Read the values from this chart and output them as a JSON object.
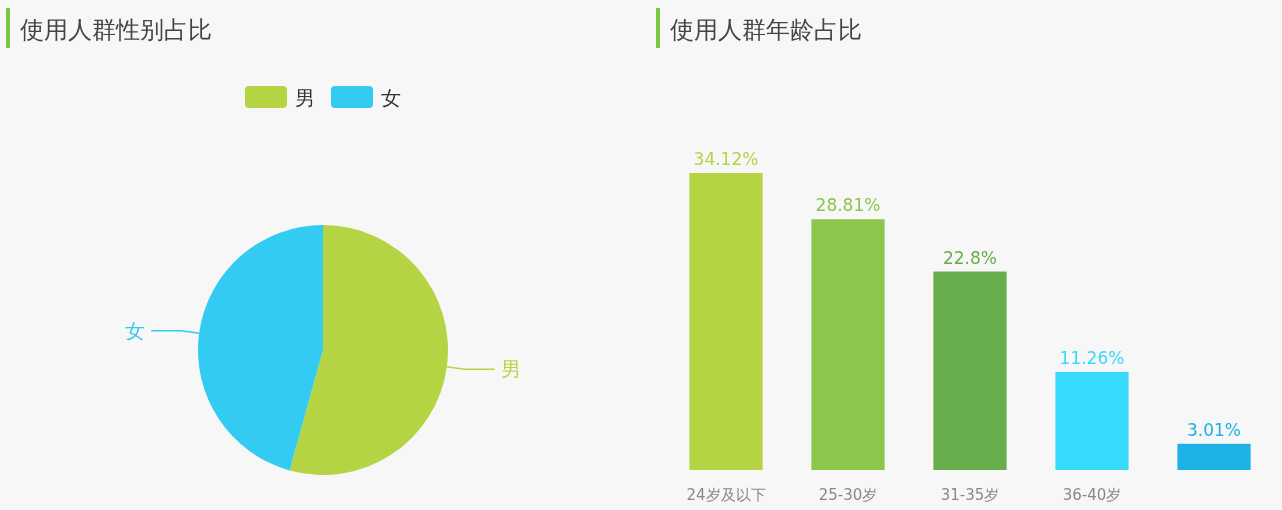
{
  "chart_data": [
    {
      "type": "pie",
      "title": "使用人群性别占比",
      "categories": [
        "男",
        "女"
      ],
      "values": [
        54.3,
        45.7
      ],
      "colors": [
        "#b5d444",
        "#33cbf2"
      ],
      "legend": "top"
    },
    {
      "type": "bar",
      "title": "使用人群年龄占比",
      "categories": [
        "24岁及以下",
        "25-30岁",
        "31-35岁",
        "36-40岁",
        null
      ],
      "values": [
        34.12,
        28.81,
        22.8,
        11.26,
        3.01
      ],
      "value_labels": [
        "34.12%",
        "28.81%",
        "22.8%",
        "11.26%",
        "3.01%"
      ],
      "colors": [
        "#b5d444",
        "#8cc64a",
        "#68ad4b",
        "#38dafb",
        "#1eb1e3"
      ]
    }
  ]
}
